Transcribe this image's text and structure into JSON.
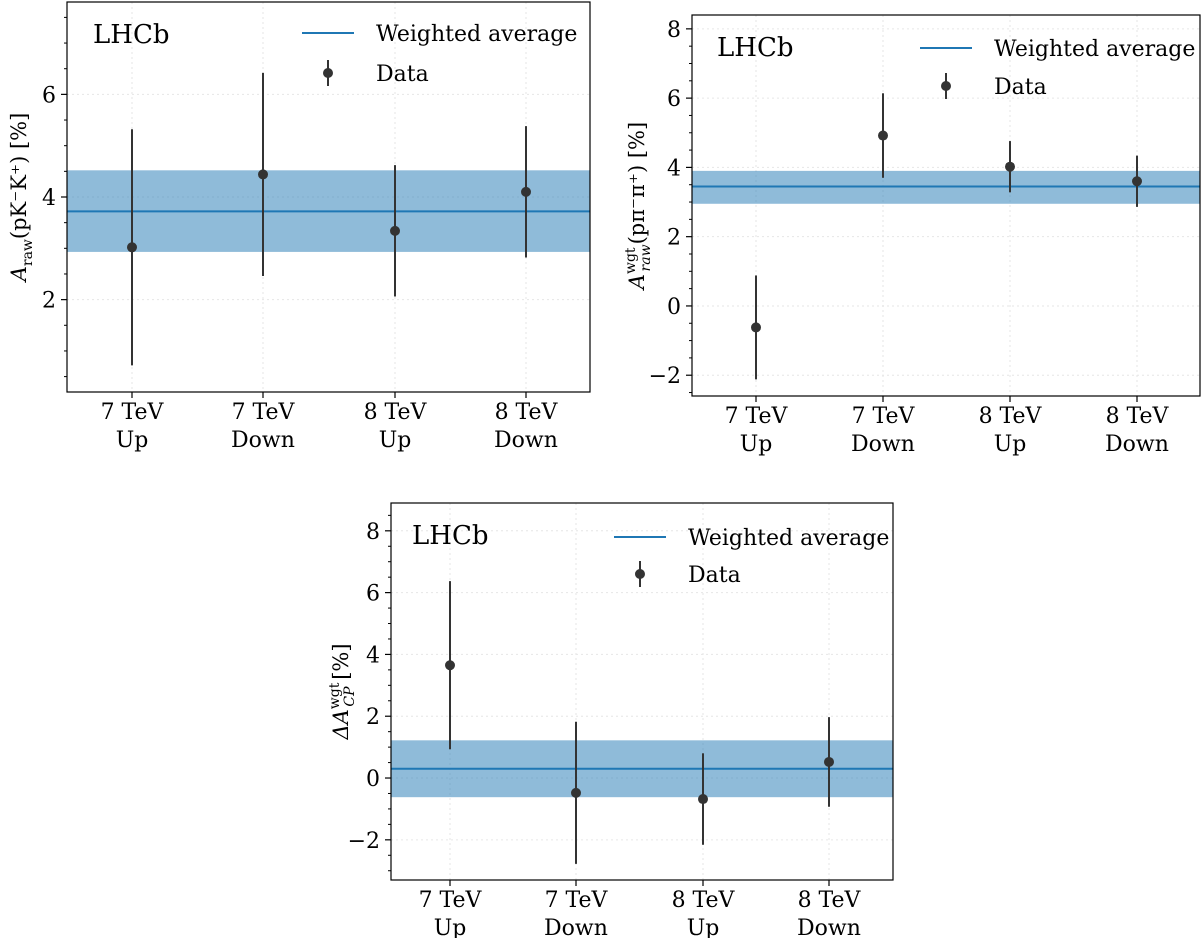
{
  "colors": {
    "band": "#1f77b4",
    "band_opacity": 0.5,
    "line": "#1f77b4",
    "data": "#333333",
    "grid": "#e6e6e6"
  },
  "chart_data": [
    {
      "type": "scatter",
      "panel_label": "LHCb",
      "ylabel": {
        "main": "A",
        "sub": "raw",
        "sup": "",
        "rest": "(pK⁻K⁺) [%]"
      },
      "categories": [
        [
          "7 TeV",
          "Up"
        ],
        [
          "7 TeV",
          "Down"
        ],
        [
          "8 TeV",
          "Up"
        ],
        [
          "8 TeV",
          "Down"
        ]
      ],
      "ylim": [
        0.2,
        7.8
      ],
      "yticks": [
        2,
        4,
        6
      ],
      "ytick_labels": [
        "2",
        "4",
        "6"
      ],
      "series": [
        {
          "name": "Data",
          "values": [
            3.02,
            4.44,
            3.34,
            4.1
          ],
          "errors": [
            2.3,
            1.98,
            1.28,
            1.28
          ]
        }
      ],
      "weighted_average": {
        "name": "Weighted average",
        "value": 3.72,
        "band": [
          2.93,
          4.52
        ]
      },
      "grid": true,
      "legend_position": "top-right"
    },
    {
      "type": "scatter",
      "panel_label": "LHCb",
      "ylabel": {
        "main": "A",
        "sub": "raw",
        "sup": "wgt",
        "rest": "(pπ⁻π⁺) [%]"
      },
      "categories": [
        [
          "7 TeV",
          "Up"
        ],
        [
          "7 TeV",
          "Down"
        ],
        [
          "8 TeV",
          "Up"
        ],
        [
          "8 TeV",
          "Down"
        ]
      ],
      "ylim": [
        -2.6,
        8.4
      ],
      "yticks": [
        -2,
        0,
        2,
        4,
        6,
        8
      ],
      "ytick_labels": [
        "−2",
        "0",
        "2",
        "4",
        "6",
        "8"
      ],
      "series": [
        {
          "name": "Data",
          "values": [
            -0.62,
            4.92,
            4.02,
            3.6
          ],
          "errors": [
            1.5,
            1.22,
            0.74,
            0.74
          ]
        }
      ],
      "weighted_average": {
        "name": "Weighted average",
        "value": 3.45,
        "band": [
          2.95,
          3.9
        ]
      },
      "grid": true,
      "legend_position": "top-right"
    },
    {
      "type": "scatter",
      "panel_label": "LHCb",
      "ylabel": {
        "main": "ΔA",
        "sub": "CP",
        "sup": "wgt",
        "rest": " [%]"
      },
      "categories": [
        [
          "7 TeV",
          "Up"
        ],
        [
          "7 TeV",
          "Down"
        ],
        [
          "8 TeV",
          "Up"
        ],
        [
          "8 TeV",
          "Down"
        ]
      ],
      "ylim": [
        -3.3,
        8.9
      ],
      "yticks": [
        -2,
        0,
        2,
        4,
        6,
        8
      ],
      "ytick_labels": [
        "−2",
        "0",
        "2",
        "4",
        "6",
        "8"
      ],
      "series": [
        {
          "name": "Data",
          "values": [
            3.65,
            -0.48,
            -0.68,
            0.52
          ],
          "errors": [
            2.72,
            2.3,
            1.48,
            1.45
          ]
        }
      ],
      "weighted_average": {
        "name": "Weighted average",
        "value": 0.3,
        "band": [
          -0.62,
          1.22
        ]
      },
      "grid": true,
      "legend_position": "top-right"
    }
  ]
}
